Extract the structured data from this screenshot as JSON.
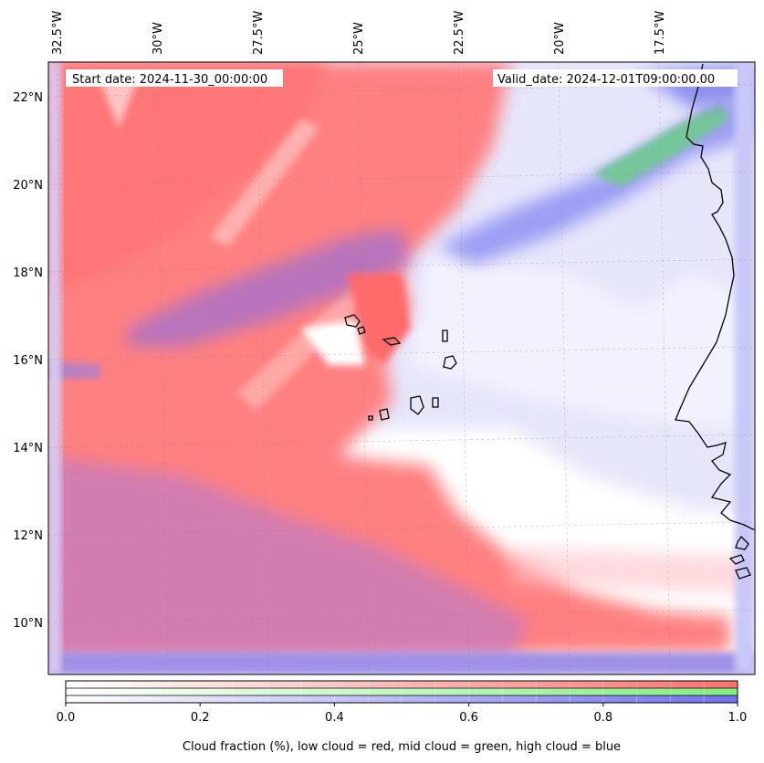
{
  "map": {
    "start_date": "Start date: 2024-11-30_00:00:00",
    "valid_date": "Valid_date: 2024-12-01T09:00:00.00",
    "lon_ticks": [
      {
        "value": -32.5,
        "label": "32.5°W"
      },
      {
        "value": -30,
        "label": "30°W"
      },
      {
        "value": -27.5,
        "label": "27.5°W"
      },
      {
        "value": -25,
        "label": "25°W"
      },
      {
        "value": -22.5,
        "label": "22.5°W"
      },
      {
        "value": -20,
        "label": "20°W"
      },
      {
        "value": -17.5,
        "label": "17.5°W"
      }
    ],
    "lat_ticks": [
      {
        "value": 22,
        "label": "22°N"
      },
      {
        "value": 20,
        "label": "20°N"
      },
      {
        "value": 18,
        "label": "18°N"
      },
      {
        "value": 16,
        "label": "16°N"
      },
      {
        "value": 14,
        "label": "14°N"
      },
      {
        "value": 12,
        "label": "12°N"
      },
      {
        "value": 10,
        "label": "10°N"
      }
    ],
    "lon_range": [
      -32.5,
      -15.0
    ],
    "lat_range": [
      8.9,
      22.8
    ],
    "gridlines": true
  },
  "colorbar": {
    "ticks": [
      {
        "value": 0.0,
        "label": "0.0"
      },
      {
        "value": 0.2,
        "label": "0.2"
      },
      {
        "value": 0.4,
        "label": "0.4"
      },
      {
        "value": 0.6,
        "label": "0.6"
      },
      {
        "value": 0.8,
        "label": "0.8"
      },
      {
        "value": 1.0,
        "label": "1.0"
      }
    ],
    "range": [
      0,
      1
    ],
    "label": "Cloud fraction (%), low cloud = red, mid cloud = green, high cloud = blue",
    "bands": [
      {
        "name": "low",
        "color": "#ff7070"
      },
      {
        "name": "mid",
        "color": "#80ee80"
      },
      {
        "name": "high",
        "color": "#7070ee"
      }
    ]
  }
}
